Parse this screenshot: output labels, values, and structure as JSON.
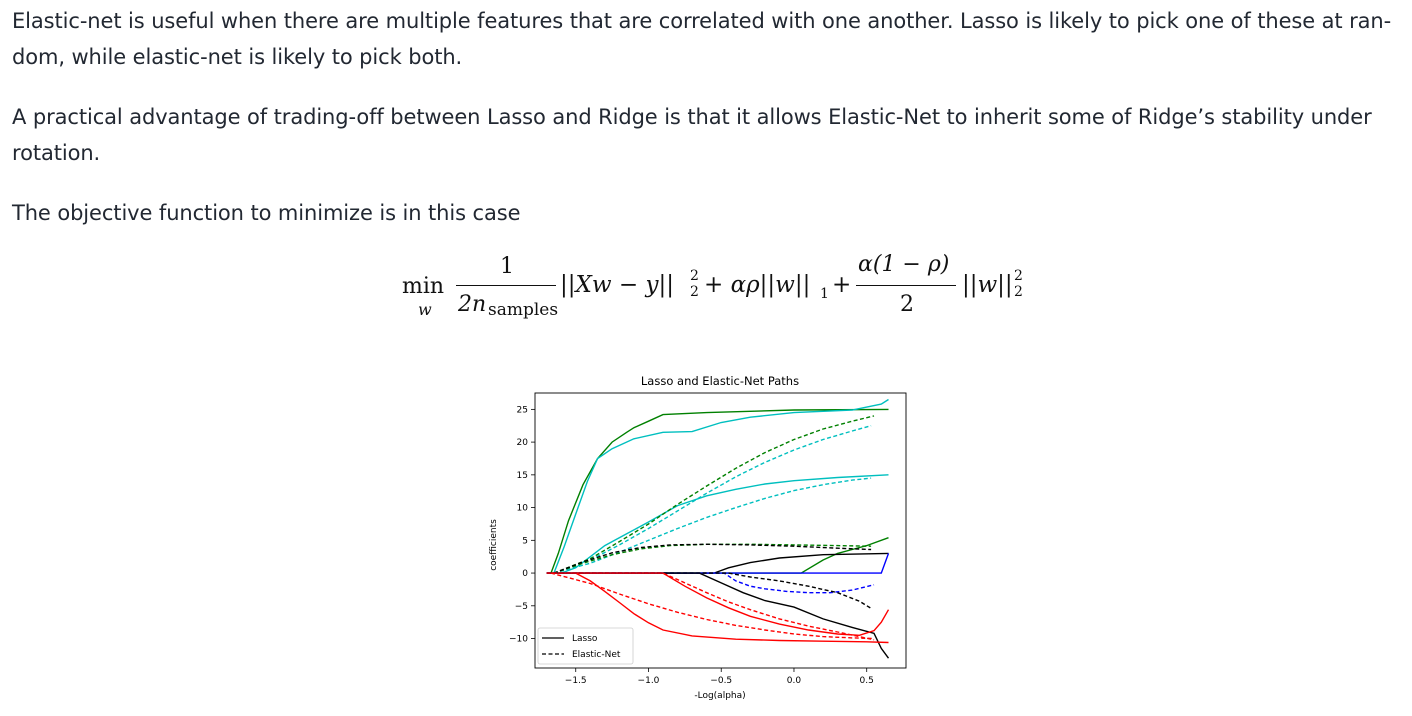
{
  "paragraphs": [
    "Elastic-net is useful when there are multiple features that are correlated with one another. Lasso is likely to pick one of these at ran- dom, while elastic-net is likely to pick both.",
    "A practical advantage of trading-off between Lasso and Ridge is that it allows Elastic-Net to inherit some of Ridge’s stability under rotation.",
    "The objective function to minimize is in this case"
  ],
  "formula": {
    "min": "min",
    "min_sub": "w",
    "frac1_num": "1",
    "frac1_den": "2n",
    "frac1_den_sub": "samples",
    "term1": "||Xw − y||",
    "term1_sup": "2",
    "term1_sub": "2",
    "term2": "+ αρ||w||",
    "term2_sub": "1",
    "plus": "+",
    "frac2_num": "α(1 − ρ)",
    "frac2_den": "2",
    "term3": "||w||",
    "term3_sup": "2",
    "term3_sub": "2"
  },
  "chart_data": {
    "type": "line",
    "title": "Lasso and Elastic-Net Paths",
    "xlabel": "-Log(alpha)",
    "ylabel": "coefficients",
    "xlim": [
      -1.78,
      0.77
    ],
    "ylim": [
      -14.5,
      27.5
    ],
    "xticks": [
      -1.5,
      -1.0,
      -0.5,
      0.0,
      0.5
    ],
    "xtick_labels": [
      "−1.5",
      "−1.0",
      "−0.5",
      "0.0",
      "0.5"
    ],
    "yticks": [
      -10,
      -5,
      0,
      5,
      10,
      15,
      20,
      25
    ],
    "ytick_labels": [
      "−10",
      "−5",
      "0",
      "5",
      "10",
      "15",
      "20",
      "25"
    ],
    "grid": false,
    "legend": {
      "placement": "lower-left",
      "entries": [
        {
          "label": "Lasso",
          "style": "solid"
        },
        {
          "label": "Elastic-Net",
          "style": "dashed"
        }
      ]
    },
    "series": [
      {
        "method": "lasso",
        "color": "#008000",
        "x": [
          -1.67,
          -1.62,
          -1.55,
          -1.45,
          -1.35,
          -1.25,
          -1.15,
          -1.1,
          -1.0,
          -0.9,
          -0.6,
          0.0,
          0.65
        ],
        "y": [
          0,
          3,
          8,
          13.5,
          17.5,
          20,
          21.5,
          22.2,
          23.2,
          24.2,
          24.5,
          24.9,
          25
        ]
      },
      {
        "method": "lasso",
        "color": "#00BFBF",
        "x": [
          -1.65,
          -1.58,
          -1.5,
          -1.42,
          -1.35,
          -1.25,
          -1.1,
          -0.9,
          -0.7,
          -0.5,
          -0.3,
          0.0,
          0.4,
          0.6,
          0.65
        ],
        "y": [
          0,
          4,
          9,
          14,
          17.5,
          19,
          20.5,
          21.5,
          21.6,
          23,
          23.8,
          24.5,
          24.9,
          25.8,
          26.5
        ]
      },
      {
        "method": "lasso",
        "color": "#00BFBF",
        "x": [
          -1.6,
          -1.5,
          -1.4,
          -1.3,
          -1.15,
          -1.0,
          -0.8,
          -0.6,
          -0.4,
          -0.2,
          0.0,
          0.3,
          0.65
        ],
        "y": [
          0,
          0.8,
          2.5,
          4.2,
          6,
          7.8,
          10.3,
          11.8,
          12.8,
          13.6,
          14.1,
          14.6,
          15
        ]
      },
      {
        "method": "lasso",
        "color": "#008000",
        "x": [
          -1.7,
          0.05,
          0.2,
          0.3,
          0.4,
          0.5,
          0.65
        ],
        "y": [
          0,
          0,
          2,
          3,
          3.6,
          4.2,
          5.4
        ]
      },
      {
        "method": "lasso",
        "color": "#000000",
        "x": [
          -1.7,
          -0.55,
          -0.45,
          -0.3,
          -0.1,
          0.2,
          0.65
        ],
        "y": [
          0,
          0,
          0.8,
          1.6,
          2.3,
          2.8,
          3
        ]
      },
      {
        "method": "lasso",
        "color": "#0000FF",
        "x": [
          -1.7,
          0.6,
          0.65
        ],
        "y": [
          0,
          0,
          3
        ]
      },
      {
        "method": "lasso",
        "color": "#000000",
        "x": [
          -1.7,
          -0.65,
          -0.5,
          -0.35,
          -0.2,
          0.0,
          0.2,
          0.4,
          0.55,
          0.6,
          0.65
        ],
        "y": [
          0,
          0,
          -1.5,
          -3,
          -4.2,
          -5.2,
          -7,
          -8.3,
          -9.2,
          -11.5,
          -13
        ]
      },
      {
        "method": "lasso",
        "color": "#FF0000",
        "x": [
          -1.5,
          -1.4,
          -1.3,
          -1.2,
          -1.1,
          -1.0,
          -0.9,
          -0.7,
          -0.4,
          -0.1,
          0.2,
          0.5,
          0.65
        ],
        "y": [
          0,
          -1.2,
          -2.8,
          -4.5,
          -6.2,
          -7.6,
          -8.7,
          -9.6,
          -10.1,
          -10.3,
          -10.4,
          -10.5,
          -10.6
        ]
      },
      {
        "method": "lasso",
        "color": "#FF0000",
        "x": [
          -1.7,
          -0.9,
          -0.75,
          -0.6,
          -0.45,
          -0.3,
          -0.1,
          0.1,
          0.3,
          0.45,
          0.55,
          0.6,
          0.65
        ],
        "y": [
          0,
          0,
          -2,
          -3.8,
          -5.3,
          -6.6,
          -7.8,
          -8.7,
          -9.3,
          -9.5,
          -8.8,
          -7.5,
          -5.6
        ]
      },
      {
        "method": "elastic-net",
        "color": "#008000",
        "x": [
          -1.65,
          -1.4,
          -1.2,
          -1.0,
          -0.8,
          -0.6,
          -0.4,
          -0.2,
          0.0,
          0.2,
          0.4,
          0.55
        ],
        "y": [
          0,
          2.2,
          4.8,
          7.5,
          10.5,
          13.3,
          16,
          18.4,
          20.4,
          22,
          23.2,
          24
        ]
      },
      {
        "method": "elastic-net",
        "color": "#00BFBF",
        "x": [
          -1.65,
          -1.4,
          -1.2,
          -1.0,
          -0.8,
          -0.6,
          -0.4,
          -0.2,
          0.0,
          0.2,
          0.4,
          0.53
        ],
        "y": [
          0,
          2,
          4.3,
          6.8,
          9.5,
          12.2,
          14.7,
          16.9,
          18.8,
          20.4,
          21.7,
          22.5
        ]
      },
      {
        "method": "elastic-net",
        "color": "#00BFBF",
        "x": [
          -1.65,
          -1.4,
          -1.2,
          -1.0,
          -0.8,
          -0.6,
          -0.4,
          -0.2,
          0.0,
          0.2,
          0.4,
          0.53
        ],
        "y": [
          0,
          1.5,
          3.2,
          5,
          6.8,
          8.5,
          10,
          11.4,
          12.6,
          13.5,
          14.2,
          14.5
        ]
      },
      {
        "method": "elastic-net",
        "color": "#008000",
        "x": [
          -1.65,
          -1.45,
          -1.25,
          -1.05,
          -0.85,
          -0.6,
          -0.3,
          0.0,
          0.3,
          0.53
        ],
        "y": [
          0,
          1.5,
          2.8,
          3.7,
          4.2,
          4.4,
          4.4,
          4.3,
          4.2,
          4.1
        ]
      },
      {
        "method": "elastic-net",
        "color": "#000000",
        "x": [
          -1.65,
          -1.45,
          -1.25,
          -1.05,
          -0.85,
          -0.6,
          -0.3,
          0.0,
          0.3,
          0.53
        ],
        "y": [
          0,
          1.7,
          3.1,
          3.9,
          4.3,
          4.4,
          4.3,
          4.1,
          3.8,
          3.6
        ]
      },
      {
        "method": "elastic-net",
        "color": "#0000FF",
        "x": [
          -1.7,
          -0.48,
          -0.4,
          -0.3,
          -0.2,
          -0.05,
          0.1,
          0.25,
          0.4,
          0.55
        ],
        "y": [
          0,
          0,
          -1.2,
          -2,
          -2.4,
          -2.8,
          -3,
          -3,
          -2.6,
          -1.8
        ]
      },
      {
        "method": "elastic-net",
        "color": "#000000",
        "x": [
          -1.7,
          -0.45,
          -0.3,
          -0.1,
          0.1,
          0.3,
          0.45,
          0.53
        ],
        "y": [
          0,
          0,
          -0.6,
          -1.2,
          -2,
          -3,
          -4.3,
          -5.4
        ]
      },
      {
        "method": "elastic-net",
        "color": "#FF0000",
        "x": [
          -1.67,
          -1.4,
          -1.2,
          -1.0,
          -0.8,
          -0.6,
          -0.4,
          -0.2,
          0.0,
          0.2,
          0.4,
          0.55
        ],
        "y": [
          0,
          -1.6,
          -3.2,
          -4.7,
          -6,
          -7.1,
          -8,
          -8.7,
          -9.3,
          -9.7,
          -9.9,
          -10
        ]
      },
      {
        "method": "elastic-net",
        "color": "#FF0000",
        "x": [
          -1.7,
          -0.9,
          -0.75,
          -0.6,
          -0.45,
          -0.3,
          -0.1,
          0.1,
          0.3,
          0.45,
          0.55
        ],
        "y": [
          0,
          0,
          -1.5,
          -3,
          -4.4,
          -5.6,
          -7,
          -8.1,
          -9,
          -9.7,
          -10.2
        ]
      }
    ]
  }
}
